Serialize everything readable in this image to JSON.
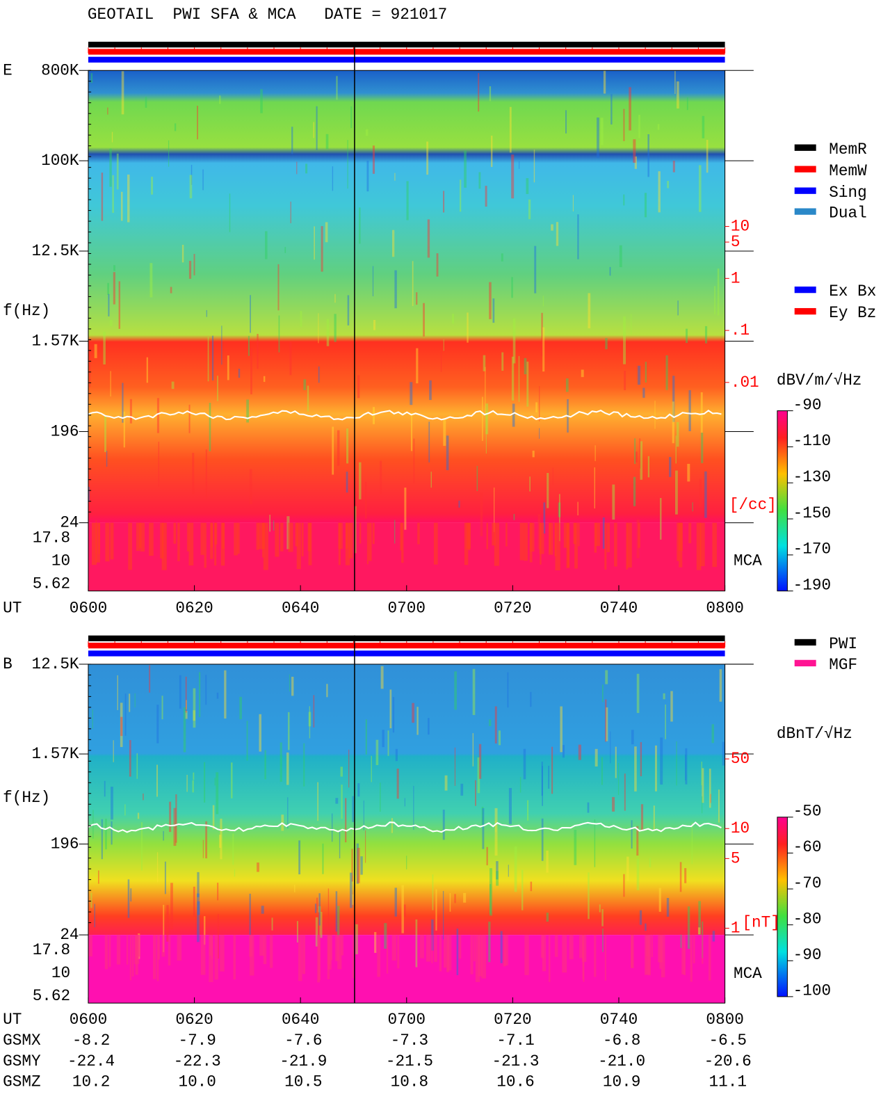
{
  "title": "GEOTAIL  PWI SFA & MCA   DATE = 921017",
  "time_label": "UT",
  "times": [
    "0600",
    "0620",
    "0640",
    "0700",
    "0720",
    "0740",
    "0800"
  ],
  "panels": [
    {
      "label": "E",
      "ylabel": "f(Hz)",
      "mca": "MCA",
      "log_y": true,
      "ylim": [
        24,
        800000
      ],
      "yticks": [
        {
          "value": 800000,
          "label": "800K"
        },
        {
          "value": 100000,
          "label": "100K"
        },
        {
          "value": 12500,
          "label": "12.5K"
        },
        {
          "value": 1570,
          "label": "1.57K"
        },
        196,
        24
      ],
      "mca_ticks": [
        17.8,
        10,
        5.62
      ],
      "right_unit": "[/cc]",
      "right_lim": [
        2e-05,
        10000
      ],
      "right_ticks": [
        10,
        5,
        1,
        {
          "value": 0.1,
          "label": ".1"
        },
        {
          "value": 0.01,
          "label": ".01"
        }
      ],
      "colorbar": {
        "unit": "dBV/m/√Hz",
        "lim": [
          -190,
          -90
        ],
        "ticks": [
          -90,
          -110,
          -130,
          -150,
          -170,
          -190
        ]
      },
      "legend": [
        {
          "name": "MemR",
          "color": "#000000"
        },
        {
          "name": "MemW",
          "color": "#ff0000"
        },
        {
          "name": "Sing",
          "color": "#0000ff"
        },
        {
          "name": "Dual",
          "color": "#2a88c8"
        }
      ],
      "legend2": [
        {
          "name": "Ex Bx",
          "color": "#0000ff"
        },
        {
          "name": "Ey Bz",
          "color": "#ff0000"
        }
      ]
    },
    {
      "label": "B",
      "ylabel": "f(Hz)",
      "mca": "MCA",
      "log_y": true,
      "ylim": [
        24,
        12500
      ],
      "yticks": [
        {
          "value": 12500,
          "label": "12.5K"
        },
        {
          "value": 1570,
          "label": "1.57K"
        },
        196,
        24
      ],
      "mca_ticks": [
        17.8,
        10,
        5.62
      ],
      "right_unit": "[nT]",
      "right_lim": [
        0.857,
        446
      ],
      "right_ticks": [
        50,
        10,
        5,
        1
      ],
      "colorbar": {
        "unit": "dBnT/√Hz",
        "lim": [
          -100,
          -50
        ],
        "ticks": [
          -50,
          -60,
          -70,
          -80,
          -90,
          -100
        ]
      },
      "legend": [
        {
          "name": "PWI",
          "color": "#000000"
        },
        {
          "name": "MGF",
          "color": "#ff1493"
        }
      ]
    }
  ],
  "orbit": {
    "rows": [
      {
        "name": "GSMX",
        "values": [
          "-8.2",
          "-7.9",
          "-7.6",
          "-7.3",
          "-7.1",
          "-6.8",
          "-6.5"
        ]
      },
      {
        "name": "GSMY",
        "values": [
          "-22.4",
          "-22.3",
          "-21.9",
          "-21.5",
          "-21.3",
          "-21.0",
          "-20.6"
        ]
      },
      {
        "name": "GSMZ",
        "values": [
          "10.2",
          "10.0",
          "10.5",
          "10.8",
          "10.6",
          "10.9",
          "11.1"
        ]
      }
    ]
  }
}
